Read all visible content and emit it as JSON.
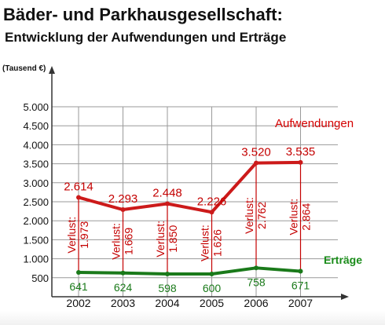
{
  "title": "Bäder- und Parkhausgesellschaft:",
  "subtitle": "Entwicklung der Aufwendungen und Erträge",
  "unit_label": "(Tausend €)",
  "chart_data": {
    "type": "line",
    "categories": [
      "2002",
      "2003",
      "2004",
      "2005",
      "2006",
      "2007"
    ],
    "ylim": [
      0,
      5000
    ],
    "yticks": [
      500,
      1000,
      1500,
      2000,
      2500,
      3000,
      3500,
      4000,
      4500,
      5000
    ],
    "ytick_labels": [
      "500",
      "1.000",
      "1.500",
      "2.000",
      "2.500",
      "3.000",
      "3.500",
      "4.000",
      "4.500",
      "5.000"
    ],
    "grid": true,
    "series": [
      {
        "name": "Aufwendungen",
        "color": "#cc1a1a",
        "values": [
          2614,
          2293,
          2448,
          2226,
          3520,
          3535
        ],
        "labels": [
          "2.614",
          "2.293",
          "2.448",
          "2.226",
          "3.520",
          "3.535"
        ]
      },
      {
        "name": "Erträge",
        "color": "#1a7a1a",
        "values": [
          641,
          624,
          598,
          600,
          758,
          671
        ],
        "labels": [
          "641",
          "624",
          "598",
          "600",
          "758",
          "671"
        ]
      }
    ],
    "loss_prefix": "Verlust:",
    "losses": [
      1973,
      1669,
      1850,
      1626,
      2762,
      2864
    ],
    "loss_labels": [
      "1.973",
      "1.669",
      "1.850",
      "1.626",
      "2.762",
      "2.864"
    ]
  }
}
